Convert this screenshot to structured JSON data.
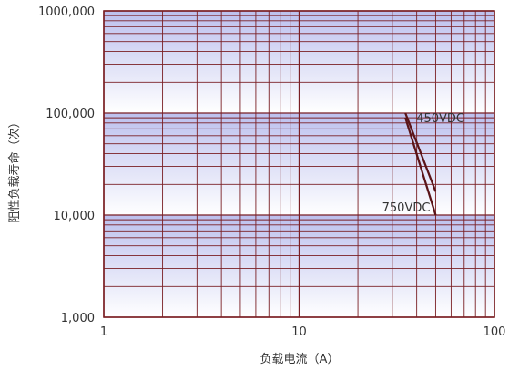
{
  "chart_data": {
    "type": "line",
    "title": "",
    "xlabel": "负载电流（A）",
    "ylabel": "阻性负载寿命（次）",
    "x_scale": "log",
    "y_scale": "log",
    "xlim": [
      1,
      100
    ],
    "ylim": [
      1000,
      1000000
    ],
    "x_ticks": [
      {
        "value": 1,
        "label": "1"
      },
      {
        "value": 10,
        "label": "10"
      },
      {
        "value": 100,
        "label": "100"
      }
    ],
    "y_ticks": [
      {
        "value": 1000,
        "label": "1,000"
      },
      {
        "value": 10000,
        "label": "10,000"
      },
      {
        "value": 100000,
        "label": "100,000"
      },
      {
        "value": 1000000,
        "label": "1000,000"
      }
    ],
    "grid": true,
    "colors": {
      "grid": "#7a1f24",
      "line": "#5a1418",
      "plot_gradient_top": "#bcc0ee",
      "plot_gradient_bottom": "#ffffff"
    },
    "series": [
      {
        "name": "450VDC",
        "x": [
          35,
          50
        ],
        "y": [
          100000,
          17000
        ]
      },
      {
        "name": "750VDC",
        "x": [
          35,
          50
        ],
        "y": [
          90000,
          10000
        ]
      }
    ]
  }
}
